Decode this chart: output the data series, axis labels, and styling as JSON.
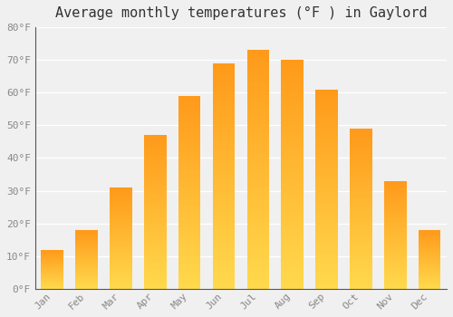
{
  "title": "Average monthly temperatures (°F ) in Gaylord",
  "months": [
    "Jan",
    "Feb",
    "Mar",
    "Apr",
    "May",
    "Jun",
    "Jul",
    "Aug",
    "Sep",
    "Oct",
    "Nov",
    "Dec"
  ],
  "values": [
    12,
    18,
    31,
    47,
    59,
    69,
    73,
    70,
    61,
    49,
    33,
    18
  ],
  "bar_color": "#FFA500",
  "bar_color_light": "#FFD060",
  "ylim": [
    0,
    80
  ],
  "yticks": [
    0,
    10,
    20,
    30,
    40,
    50,
    60,
    70,
    80
  ],
  "ytick_labels": [
    "0°F",
    "10°F",
    "20°F",
    "30°F",
    "40°F",
    "50°F",
    "60°F",
    "70°F",
    "80°F"
  ],
  "background_color": "#f0f0f0",
  "grid_color": "#ffffff",
  "title_fontsize": 11,
  "tick_fontsize": 8,
  "tick_color": "#888888",
  "axis_color": "#555555"
}
